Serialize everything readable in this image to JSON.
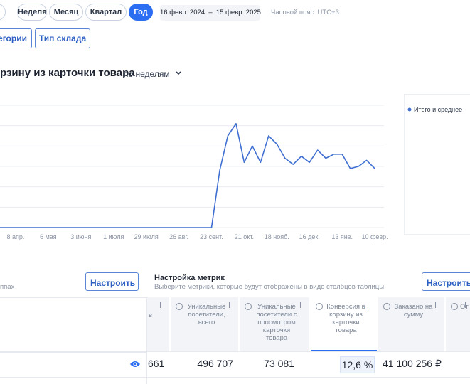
{
  "toolbar": {
    "periods": [
      "Неделя",
      "Месяц",
      "Квартал",
      "Год"
    ],
    "active_period_index": 3,
    "date_range": "16 февр. 2024  –  15 февр. 2025",
    "timezone": "Часовой пояс: UTC+3",
    "filters": [
      "егории",
      "Тип склада"
    ]
  },
  "chart_data": {
    "type": "line",
    "title": "рзину из карточки товара",
    "granularity": "по неделям",
    "categories": [
      null,
      null,
      "8 апр.",
      null,
      null,
      null,
      "6 мая",
      null,
      null,
      null,
      "3 июня",
      null,
      null,
      null,
      "1 июля",
      null,
      null,
      null,
      "29 июля",
      null,
      null,
      null,
      "26 авг.",
      null,
      null,
      null,
      "23 сент.",
      null,
      null,
      null,
      "21 окт.",
      null,
      null,
      null,
      "18 нояб.",
      null,
      null,
      null,
      "16 дек.",
      null,
      null,
      null,
      "13 янв.",
      null,
      null,
      null,
      "10 февр."
    ],
    "series": [
      {
        "name": "Итого и среднее",
        "color": "#3f6fd1",
        "values": [
          0,
          0,
          0,
          0,
          0,
          0,
          0,
          0,
          0,
          0,
          0,
          0,
          0,
          0,
          0,
          0,
          0,
          0,
          0,
          0,
          0,
          0,
          0,
          0,
          0,
          0,
          0,
          2.8,
          4.5,
          5.1,
          3.2,
          4.0,
          3.2,
          4.5,
          4.1,
          3.4,
          3.1,
          3.5,
          3.2,
          3.8,
          3.4,
          3.6,
          3.6,
          2.9,
          3.0,
          3.3,
          2.9
        ]
      }
    ],
    "ylim": [
      0,
      6
    ],
    "yticks": [
      0,
      1,
      2,
      3,
      4,
      5,
      6
    ],
    "grid": true,
    "ytick_labels": false,
    "legend": "right"
  },
  "metrics": {
    "configure_left": "Настроить",
    "left_note": "ппах",
    "title": "Настройка метрик",
    "subtitle": "Выберите метрики, которые будут отображены в виде столбцов таблицы",
    "configure_right": "Настроить"
  },
  "table": {
    "headers": [
      "в",
      "Уникальные посетители, всего",
      "Уникальные посетители с просмотром карточки товара",
      "Конверсия в корзину из карточки товара",
      "Заказано на сумму",
      "От"
    ],
    "sorted_column": 3,
    "rows": [
      [
        "661",
        "496 707",
        "73 081",
        "12,6 %",
        "41 100 256 ₽"
      ]
    ]
  }
}
